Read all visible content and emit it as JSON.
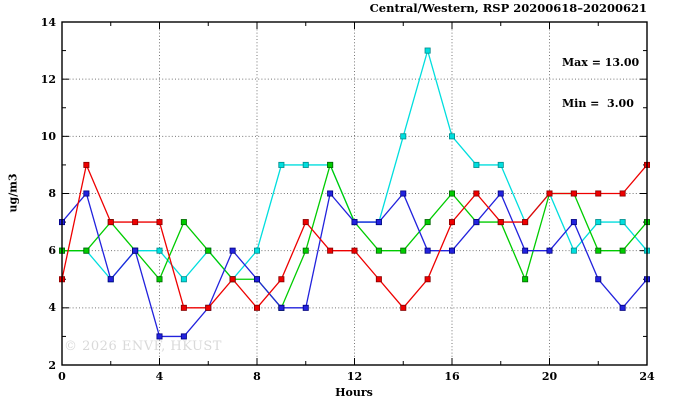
{
  "title": "Central/Western, RSP 20200618–20200621",
  "legend": {
    "max_label": "Max = 13.00",
    "min_label": "Min =  3.00"
  },
  "watermark": "© 2026 ENVF, HKUST",
  "axes": {
    "ylabel": "ug/m3",
    "xlabel": "Hours",
    "y_ticks": [
      2,
      4,
      6,
      8,
      10,
      12,
      14
    ],
    "x_ticks": [
      0,
      4,
      8,
      12,
      16,
      20,
      24
    ]
  },
  "chart_data": {
    "type": "line",
    "title": "Central/Western, RSP 20200618–20200621",
    "xlabel": "Hours",
    "ylabel": "ug/m3",
    "xlim": [
      0,
      24
    ],
    "ylim": [
      2,
      14
    ],
    "grid": true,
    "grid_x": [
      4,
      8,
      12,
      16,
      20
    ],
    "grid_y": [
      4,
      6,
      8,
      10,
      12
    ],
    "minor_x": [
      2,
      6,
      10,
      14,
      18,
      22
    ],
    "minor_y": [
      3,
      5,
      7,
      9,
      11,
      13
    ],
    "max": 13.0,
    "min": 3.0,
    "x": [
      0,
      1,
      2,
      3,
      4,
      5,
      6,
      7,
      8,
      9,
      10,
      11,
      12,
      13,
      14,
      15,
      16,
      17,
      18,
      19,
      20,
      21,
      22,
      23,
      24
    ],
    "series": [
      {
        "name": "cyan",
        "color": "#00dede",
        "edge": "#008b8b",
        "values": [
          6,
          6,
          5,
          6,
          6,
          5,
          6,
          5,
          6,
          9,
          9,
          9,
          7,
          7,
          10,
          13,
          10,
          9,
          9,
          7,
          8,
          6,
          7,
          7,
          6
        ]
      },
      {
        "name": "green",
        "color": "#00cc00",
        "edge": "#006600",
        "values": [
          6,
          6,
          7,
          6,
          5,
          7,
          6,
          5,
          5,
          4,
          6,
          9,
          7,
          6,
          6,
          7,
          8,
          7,
          7,
          5,
          8,
          8,
          6,
          6,
          7
        ]
      },
      {
        "name": "blue",
        "color": "#2222dd",
        "edge": "#000080",
        "values": [
          7,
          8,
          5,
          6,
          3,
          3,
          4,
          6,
          5,
          4,
          4,
          8,
          7,
          7,
          8,
          6,
          6,
          7,
          8,
          6,
          6,
          7,
          5,
          4,
          5
        ]
      },
      {
        "name": "red",
        "color": "#ee0000",
        "edge": "#880000",
        "values": [
          5,
          9,
          7,
          7,
          7,
          4,
          4,
          5,
          4,
          5,
          7,
          6,
          6,
          5,
          4,
          5,
          7,
          8,
          7,
          7,
          8,
          8,
          8,
          8,
          9
        ]
      }
    ]
  }
}
